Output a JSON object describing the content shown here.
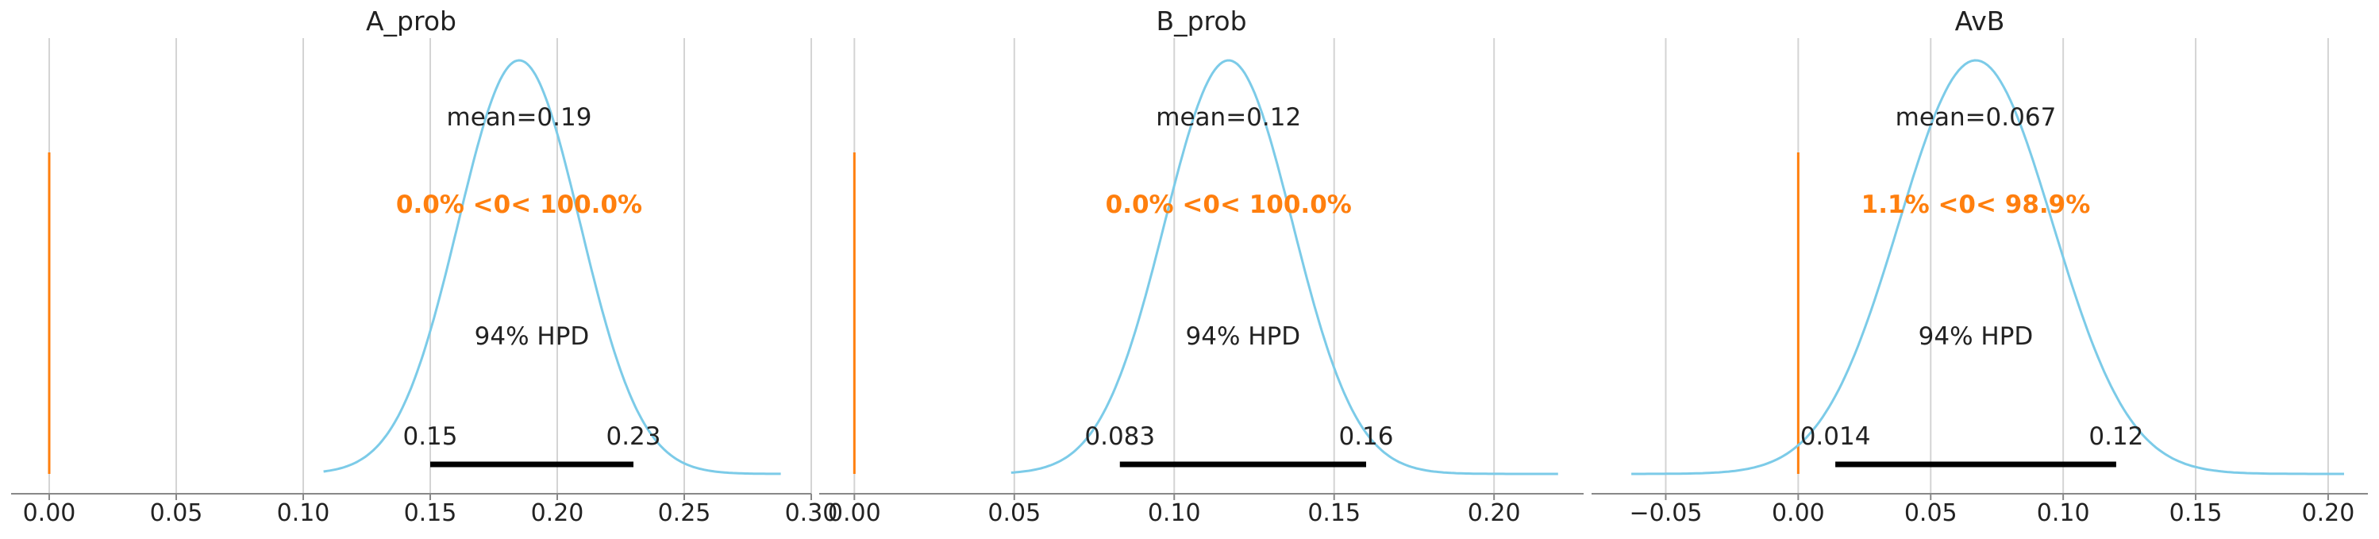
{
  "chart_data": [
    {
      "type": "area",
      "title": "A_prob",
      "xlim": [
        -0.015,
        0.3
      ],
      "x_ticks": [
        0.0,
        0.05,
        0.1,
        0.15,
        0.2,
        0.25,
        0.3
      ],
      "x_tick_labels": [
        "0.00",
        "0.05",
        "0.10",
        "0.15",
        "0.20",
        "0.25",
        "0.30"
      ],
      "grid": true,
      "kde": {
        "mean": 0.185,
        "sd": 0.024,
        "x_min": 0.108,
        "x_max": 0.288
      },
      "reference_value": 0.0,
      "mean_label": "mean=0.19",
      "ref_label": "0.0% <0< 100.0%",
      "hpd": {
        "label": "94% HPD",
        "low": 0.15,
        "high": 0.23,
        "low_label": "0.15",
        "high_label": "0.23"
      }
    },
    {
      "type": "area",
      "title": "B_prob",
      "xlim": [
        -0.011,
        0.228
      ],
      "x_ticks": [
        0.0,
        0.05,
        0.1,
        0.15,
        0.2
      ],
      "x_tick_labels": [
        "0.00",
        "0.05",
        "0.10",
        "0.15",
        "0.20"
      ],
      "grid": true,
      "kde": {
        "mean": 0.117,
        "sd": 0.02,
        "x_min": 0.049,
        "x_max": 0.22
      },
      "reference_value": 0.0,
      "mean_label": "mean=0.12",
      "ref_label": "0.0% <0< 100.0%",
      "hpd": {
        "label": "94% HPD",
        "low": 0.083,
        "high": 0.16,
        "low_label": "0.083",
        "high_label": "0.16"
      }
    },
    {
      "type": "area",
      "title": "AvB",
      "xlim": [
        -0.078,
        0.215
      ],
      "x_ticks": [
        -0.05,
        0.0,
        0.05,
        0.1,
        0.15,
        0.2
      ],
      "x_tick_labels": [
        "−0.05",
        "0.00",
        "0.05",
        "0.10",
        "0.15",
        "0.20"
      ],
      "grid": true,
      "kde": {
        "mean": 0.067,
        "sd": 0.029,
        "x_min": -0.063,
        "x_max": 0.206
      },
      "reference_value": 0.0,
      "mean_label": "mean=0.067",
      "ref_label": "1.1% <0< 98.9%",
      "hpd": {
        "label": "94% HPD",
        "low": 0.014,
        "high": 0.12,
        "low_label": "0.014",
        "high_label": "0.12"
      }
    }
  ],
  "colors": {
    "kde_line": "#7ccbe8",
    "reference_line": "#ff7f0e",
    "ref_text": "#ff7f0e",
    "grid": "#d4d4d4",
    "text": "#222222",
    "axis": "#888888",
    "hpd_bar": "#000000"
  }
}
